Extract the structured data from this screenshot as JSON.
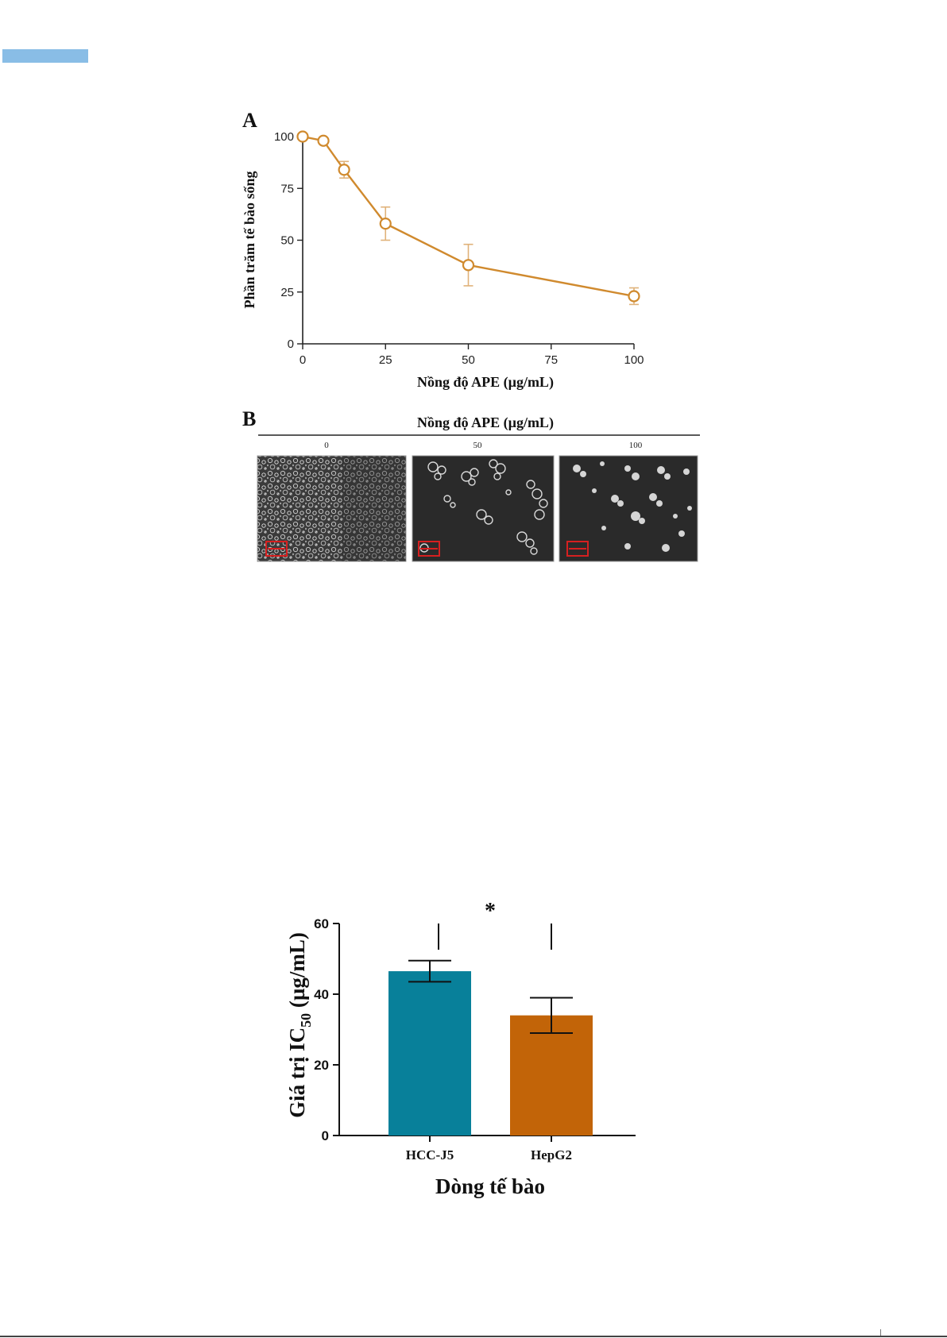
{
  "chart_data": [
    {
      "type": "line",
      "panel_label": "A",
      "xlabel": "Nồng độ APE (µg/mL)",
      "ylabel": "Phần trăm tế bào sống",
      "xlim": [
        0,
        100
      ],
      "ylim": [
        0,
        100
      ],
      "xticks": [
        "0",
        "25",
        "50",
        "75",
        "100"
      ],
      "yticks": [
        "0",
        "25",
        "50",
        "75",
        "100"
      ],
      "series": [
        {
          "color": "#d08a2e",
          "points": [
            {
              "x": 0,
              "y": 100,
              "err": 0
            },
            {
              "x": 6.25,
              "y": 98,
              "err": 1
            },
            {
              "x": 12.5,
              "y": 84,
              "err": 4
            },
            {
              "x": 25,
              "y": 58,
              "err": 8
            },
            {
              "x": 50,
              "y": 38,
              "err": 10
            },
            {
              "x": 100,
              "y": 23,
              "err": 4
            }
          ]
        }
      ]
    },
    {
      "type": "bar",
      "ylabel": "Giá trị IC",
      "ylabel_subscript": "50",
      "ylabel_suffix": " (µg/mL)",
      "xlabel": "Dòng tế bào",
      "categories": [
        "HCC-J5",
        "HepG2"
      ],
      "values": [
        46.5,
        34
      ],
      "errors": [
        3,
        5
      ],
      "colors": [
        "#08809a",
        "#c26408"
      ],
      "ylim": [
        0,
        60
      ],
      "yticks": [
        "0",
        "20",
        "40",
        "60"
      ],
      "significance": "*"
    }
  ],
  "panel_b": {
    "label": "B",
    "title": "Nồng độ APE (µg/mL)",
    "images": [
      {
        "concentration": "0"
      },
      {
        "concentration": "50"
      },
      {
        "concentration": "100"
      }
    ]
  }
}
